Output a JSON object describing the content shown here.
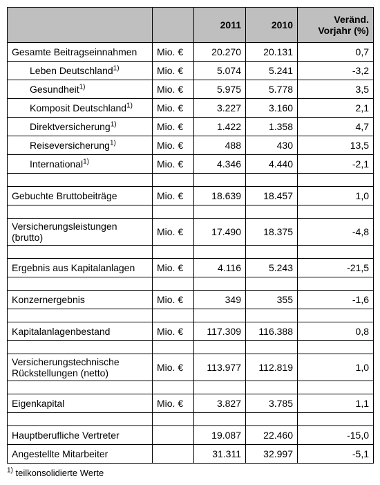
{
  "header": {
    "col_label": "",
    "col_unit": "",
    "col_2011": "2011",
    "col_2010": "2010",
    "col_change": "Veränd. Vorjahr (%)"
  },
  "rows": [
    {
      "type": "data",
      "indent": false,
      "label": "Gesamte Beitragseinnahmen",
      "sup": "",
      "unit": "Mio. €",
      "y2011": "20.270",
      "y2010": "20.131",
      "chg": "0,7"
    },
    {
      "type": "data",
      "indent": true,
      "label": "Leben Deutschland",
      "sup": "1)",
      "unit": "Mio. €",
      "y2011": "5.074",
      "y2010": "5.241",
      "chg": "-3,2"
    },
    {
      "type": "data",
      "indent": true,
      "label": "Gesundheit",
      "sup": "1)",
      "unit": "Mio. €",
      "y2011": "5.975",
      "y2010": "5.778",
      "chg": "3,5"
    },
    {
      "type": "data",
      "indent": true,
      "label": "Komposit Deutschland",
      "sup": "1)",
      "unit": "Mio. €",
      "y2011": "3.227",
      "y2010": "3.160",
      "chg": "2,1"
    },
    {
      "type": "data",
      "indent": true,
      "label": "Direktversicherung",
      "sup": "1)",
      "unit": "Mio. €",
      "y2011": "1.422",
      "y2010": "1.358",
      "chg": "4,7"
    },
    {
      "type": "data",
      "indent": true,
      "label": "Reiseversicherung",
      "sup": "1)",
      "unit": "Mio. €",
      "y2011": "488",
      "y2010": "430",
      "chg": "13,5"
    },
    {
      "type": "data",
      "indent": true,
      "label": "International",
      "sup": "1)",
      "unit": "Mio. €",
      "y2011": "4.346",
      "y2010": "4.440",
      "chg": "-2,1"
    },
    {
      "type": "blank"
    },
    {
      "type": "data",
      "indent": false,
      "label": "Gebuchte Bruttobeiträge",
      "sup": "",
      "unit": "Mio. €",
      "y2011": "18.639",
      "y2010": "18.457",
      "chg": "1,0"
    },
    {
      "type": "blank"
    },
    {
      "type": "data",
      "indent": false,
      "label": "Versicherungsleistungen (brutto)",
      "sup": "",
      "unit": "Mio. €",
      "y2011": "17.490",
      "y2010": "18.375",
      "chg": "-4,8"
    },
    {
      "type": "blank"
    },
    {
      "type": "data",
      "indent": false,
      "label": "Ergebnis aus Kapitalanlagen",
      "sup": "",
      "unit": "Mio. €",
      "y2011": "4.116",
      "y2010": "5.243",
      "chg": "-21,5"
    },
    {
      "type": "blank"
    },
    {
      "type": "data",
      "indent": false,
      "label": "Konzernergebnis",
      "sup": "",
      "unit": "Mio. €",
      "y2011": "349",
      "y2010": "355",
      "chg": "-1,6"
    },
    {
      "type": "blank"
    },
    {
      "type": "data",
      "indent": false,
      "label": "Kapitalanlagenbestand",
      "sup": "",
      "unit": "Mio. €",
      "y2011": "117.309",
      "y2010": "116.388",
      "chg": "0,8"
    },
    {
      "type": "blank"
    },
    {
      "type": "data",
      "indent": false,
      "label": "Versicherungstechnische Rückstellungen (netto)",
      "sup": "",
      "unit": "Mio. €",
      "y2011": "113.977",
      "y2010": "112.819",
      "chg": "1,0"
    },
    {
      "type": "blank"
    },
    {
      "type": "data",
      "indent": false,
      "label": "Eigenkapital",
      "sup": "",
      "unit": "Mio. €",
      "y2011": "3.827",
      "y2010": "3.785",
      "chg": "1,1"
    },
    {
      "type": "blank"
    },
    {
      "type": "data",
      "indent": false,
      "label": "Hauptberufliche Vertreter",
      "sup": "",
      "unit": "",
      "y2011": "19.087",
      "y2010": "22.460",
      "chg": "-15,0"
    },
    {
      "type": "data",
      "indent": false,
      "label": "Angestellte Mitarbeiter",
      "sup": "",
      "unit": "",
      "y2011": "31.311",
      "y2010": "32.997",
      "chg": "-5,1"
    }
  ],
  "footnote": {
    "marker": "1)",
    "text": "teilkonsolidierte Werte"
  }
}
